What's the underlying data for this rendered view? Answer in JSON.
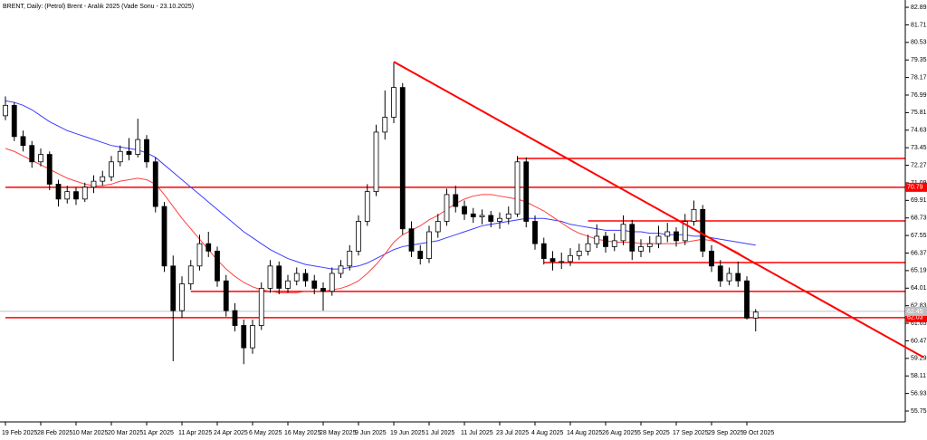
{
  "chart_data": {
    "type": "candlestick",
    "title": "BRENT, Daily:  (Petrol) Brent - Aralık 2025 (Vade Sonu - 23.10.2025)",
    "categories": [
      "19 Feb 2025",
      null,
      null,
      null,
      "28 Feb 2025",
      null,
      null,
      null,
      "10 Mar 2025",
      null,
      null,
      null,
      "20 Mar 2025",
      null,
      null,
      null,
      "1 Apr 2025",
      null,
      null,
      null,
      "11 Apr 2025",
      null,
      null,
      null,
      "24 Apr 2025",
      null,
      null,
      null,
      "6 May 2025",
      null,
      null,
      null,
      "16 May 2025",
      null,
      null,
      null,
      "28 May 2025",
      null,
      null,
      null,
      "9 Jun 2025",
      null,
      null,
      null,
      "19 Jun 2025",
      null,
      null,
      null,
      "1 Jul 2025",
      null,
      null,
      null,
      "11 Jul 2025",
      null,
      null,
      null,
      "23 Jul 2025",
      null,
      null,
      null,
      "4 Aug 2025",
      null,
      null,
      null,
      "14 Aug 2025",
      null,
      null,
      null,
      "26 Aug 2025",
      null,
      null,
      null,
      "5 Sep 2025",
      null,
      null,
      null,
      "17 Sep 2025",
      null,
      null,
      null,
      "29 Sep 2025",
      null,
      null,
      null,
      "9 Oct 2025",
      null
    ],
    "ohlc": [
      [
        75.6,
        76.9,
        75.3,
        76.3
      ],
      [
        76.3,
        76.5,
        73.9,
        74.2
      ],
      [
        74.2,
        74.6,
        73.2,
        73.6
      ],
      [
        73.6,
        73.9,
        72.1,
        72.5
      ],
      [
        72.5,
        73.4,
        72.2,
        73.0
      ],
      [
        73.0,
        73.2,
        70.6,
        71.0
      ],
      [
        71.0,
        71.3,
        69.5,
        70.0
      ],
      [
        70.0,
        70.9,
        69.7,
        70.5
      ],
      [
        70.5,
        70.8,
        69.6,
        70.0
      ],
      [
        70.0,
        71.1,
        69.8,
        70.8
      ],
      [
        70.8,
        71.6,
        70.4,
        71.2
      ],
      [
        71.2,
        71.9,
        70.9,
        71.5
      ],
      [
        71.5,
        72.9,
        71.2,
        72.5
      ],
      [
        72.5,
        73.6,
        72.2,
        73.2
      ],
      [
        73.2,
        74.1,
        72.6,
        73.0
      ],
      [
        73.0,
        75.4,
        72.8,
        74.0
      ],
      [
        74.0,
        74.3,
        72.1,
        72.5
      ],
      [
        72.5,
        72.8,
        69.1,
        69.5
      ],
      [
        69.5,
        69.8,
        65.1,
        65.5
      ],
      [
        65.5,
        66.2,
        59.1,
        62.5
      ],
      [
        62.5,
        64.8,
        62.0,
        64.3
      ],
      [
        64.3,
        65.9,
        63.9,
        65.5
      ],
      [
        65.5,
        67.6,
        65.2,
        67.0
      ],
      [
        67.0,
        67.8,
        66.1,
        66.5
      ],
      [
        66.5,
        66.8,
        64.1,
        64.5
      ],
      [
        64.5,
        64.9,
        62.1,
        62.5
      ],
      [
        62.5,
        63.0,
        61.1,
        61.5
      ],
      [
        61.5,
        61.9,
        58.9,
        60.0
      ],
      [
        60.0,
        61.9,
        59.6,
        61.5
      ],
      [
        61.5,
        64.4,
        61.2,
        64.0
      ],
      [
        64.0,
        65.9,
        63.7,
        65.5
      ],
      [
        65.5,
        65.8,
        63.6,
        64.0
      ],
      [
        64.0,
        64.9,
        63.7,
        64.5
      ],
      [
        64.5,
        65.4,
        64.2,
        65.0
      ],
      [
        65.0,
        65.3,
        64.1,
        64.5
      ],
      [
        64.5,
        64.9,
        63.6,
        64.0
      ],
      [
        64.0,
        64.4,
        62.5,
        63.8
      ],
      [
        63.8,
        65.4,
        63.5,
        65.0
      ],
      [
        65.0,
        65.9,
        64.7,
        65.5
      ],
      [
        65.5,
        66.9,
        65.2,
        66.5
      ],
      [
        66.5,
        68.9,
        66.2,
        68.5
      ],
      [
        68.5,
        71.0,
        68.2,
        70.5
      ],
      [
        70.5,
        75.0,
        70.2,
        74.5
      ],
      [
        74.5,
        77.3,
        74.0,
        75.5
      ],
      [
        75.5,
        79.2,
        75.1,
        77.5
      ],
      [
        77.5,
        77.8,
        67.6,
        68.0
      ],
      [
        68.0,
        68.5,
        66.1,
        66.5
      ],
      [
        66.5,
        66.9,
        65.6,
        66.0
      ],
      [
        66.0,
        68.2,
        65.7,
        67.8
      ],
      [
        67.8,
        69.0,
        67.4,
        68.5
      ],
      [
        68.5,
        70.7,
        68.2,
        70.3
      ],
      [
        70.3,
        70.9,
        69.1,
        69.5
      ],
      [
        69.5,
        69.9,
        68.6,
        69.0
      ],
      [
        69.0,
        69.4,
        68.4,
        68.8
      ],
      [
        68.8,
        69.3,
        68.3,
        68.9
      ],
      [
        68.9,
        69.2,
        68.1,
        68.5
      ],
      [
        68.5,
        69.1,
        68.0,
        68.7
      ],
      [
        68.7,
        69.5,
        68.3,
        69.0
      ],
      [
        69.0,
        72.9,
        68.8,
        72.5
      ],
      [
        72.5,
        72.8,
        68.1,
        68.5
      ],
      [
        68.5,
        68.9,
        66.6,
        67.0
      ],
      [
        67.0,
        67.4,
        65.6,
        66.0
      ],
      [
        66.0,
        66.5,
        65.2,
        65.8
      ],
      [
        65.8,
        66.4,
        65.3,
        65.8
      ],
      [
        65.8,
        66.7,
        65.5,
        66.2
      ],
      [
        66.2,
        67.0,
        65.9,
        66.5
      ],
      [
        66.5,
        67.6,
        66.2,
        67.0
      ],
      [
        67.0,
        68.3,
        66.7,
        67.5
      ],
      [
        67.5,
        67.8,
        66.4,
        66.8
      ],
      [
        66.8,
        67.7,
        66.5,
        67.2
      ],
      [
        67.2,
        68.9,
        66.9,
        68.3
      ],
      [
        68.3,
        68.6,
        65.9,
        66.5
      ],
      [
        66.5,
        67.3,
        66.1,
        66.8
      ],
      [
        66.8,
        67.5,
        66.4,
        67.0
      ],
      [
        67.0,
        68.2,
        66.7,
        67.5
      ],
      [
        67.5,
        68.4,
        67.1,
        67.8
      ],
      [
        67.8,
        68.1,
        66.8,
        67.2
      ],
      [
        67.2,
        69.0,
        66.9,
        68.5
      ],
      [
        68.5,
        69.9,
        68.2,
        69.3
      ],
      [
        69.3,
        69.6,
        66.1,
        66.5
      ],
      [
        66.5,
        66.9,
        65.1,
        65.5
      ],
      [
        65.5,
        65.9,
        64.1,
        64.5
      ],
      [
        64.5,
        65.4,
        64.2,
        65.0
      ],
      [
        65.0,
        65.8,
        64.1,
        64.5
      ],
      [
        64.5,
        64.8,
        61.9,
        62.0
      ],
      [
        62.0,
        62.6,
        61.1,
        62.4
      ]
    ],
    "series": [
      {
        "color": "#3c3cff",
        "values": [
          76.6,
          76.5,
          76.3,
          76.0,
          75.6,
          75.2,
          74.9,
          74.6,
          74.4,
          74.2,
          74.0,
          73.8,
          73.6,
          73.5,
          73.4,
          73.3,
          73.1,
          72.8,
          72.3,
          71.8,
          71.3,
          70.8,
          70.3,
          69.8,
          69.3,
          68.8,
          68.3,
          67.8,
          67.4,
          67.0,
          66.6,
          66.3,
          66.0,
          65.8,
          65.6,
          65.5,
          65.4,
          65.3,
          65.3,
          65.4,
          65.5,
          65.7,
          66.0,
          66.3,
          66.6,
          66.8,
          66.9,
          67.0,
          67.1,
          67.2,
          67.4,
          67.6,
          67.8,
          68.0,
          68.2,
          68.3,
          68.4,
          68.5,
          68.6,
          68.7,
          68.7,
          68.7,
          68.6,
          68.5,
          68.3,
          68.2,
          68.1,
          68.0,
          67.9,
          67.9,
          67.9,
          67.8,
          67.8,
          67.7,
          67.7,
          67.6,
          67.6,
          67.6,
          67.5,
          67.5,
          67.4,
          67.3,
          67.2,
          67.1,
          67.0,
          66.9
        ]
      },
      {
        "color": "#ff4040",
        "values": [
          73.4,
          73.2,
          72.9,
          72.6,
          72.3,
          72.0,
          71.7,
          71.4,
          71.2,
          71.0,
          70.9,
          70.9,
          71.0,
          71.2,
          71.3,
          71.4,
          71.3,
          71.0,
          70.3,
          69.5,
          68.7,
          68.0,
          67.3,
          66.6,
          65.9,
          65.3,
          64.8,
          64.4,
          64.1,
          63.9,
          63.8,
          63.7,
          63.7,
          63.7,
          63.8,
          63.8,
          63.8,
          63.9,
          64.0,
          64.2,
          64.5,
          65.0,
          65.6,
          66.3,
          67.1,
          67.6,
          67.9,
          68.2,
          68.6,
          68.9,
          69.3,
          69.7,
          70.0,
          70.2,
          70.3,
          70.3,
          70.2,
          70.1,
          70.0,
          69.8,
          69.5,
          69.2,
          68.8,
          68.4,
          68.0,
          67.7,
          67.5,
          67.3,
          67.2,
          67.1,
          67.1,
          67.1,
          67.0,
          67.0,
          67.0,
          67.0,
          67.0,
          67.1,
          67.2,
          67.3,
          67.2,
          67.0,
          66.7,
          66.4,
          66.0,
          65.6
        ]
      }
    ],
    "levels": [
      {
        "value": 72.73,
        "from": 58
      },
      {
        "value": 70.79,
        "from": 0,
        "box": true
      },
      {
        "value": 68.53,
        "from": 66
      },
      {
        "value": 65.73,
        "from": 61
      },
      {
        "value": 63.79,
        "from": 21
      },
      {
        "value": 62.03,
        "from": 0,
        "box": true
      }
    ],
    "level_color": "#ff0000",
    "price": {
      "value": 62.45,
      "color": "#c0c0c0"
    },
    "trendline": {
      "x": [
        44,
        104
      ],
      "y": [
        79.23,
        59.37
      ],
      "color": "#ff0000"
    },
    "up_color": "#ffffff",
    "down_color": "#000000",
    "ylim": [
      55.02,
      83.38
    ],
    "yticks": [
      82.89,
      81.71,
      80.53,
      79.35,
      78.17,
      76.99,
      75.81,
      74.63,
      73.45,
      72.27,
      71.09,
      69.91,
      68.73,
      67.55,
      66.37,
      65.19,
      64.01,
      62.83,
      61.65,
      60.47,
      59.29,
      58.11,
      56.93,
      55.75
    ]
  }
}
